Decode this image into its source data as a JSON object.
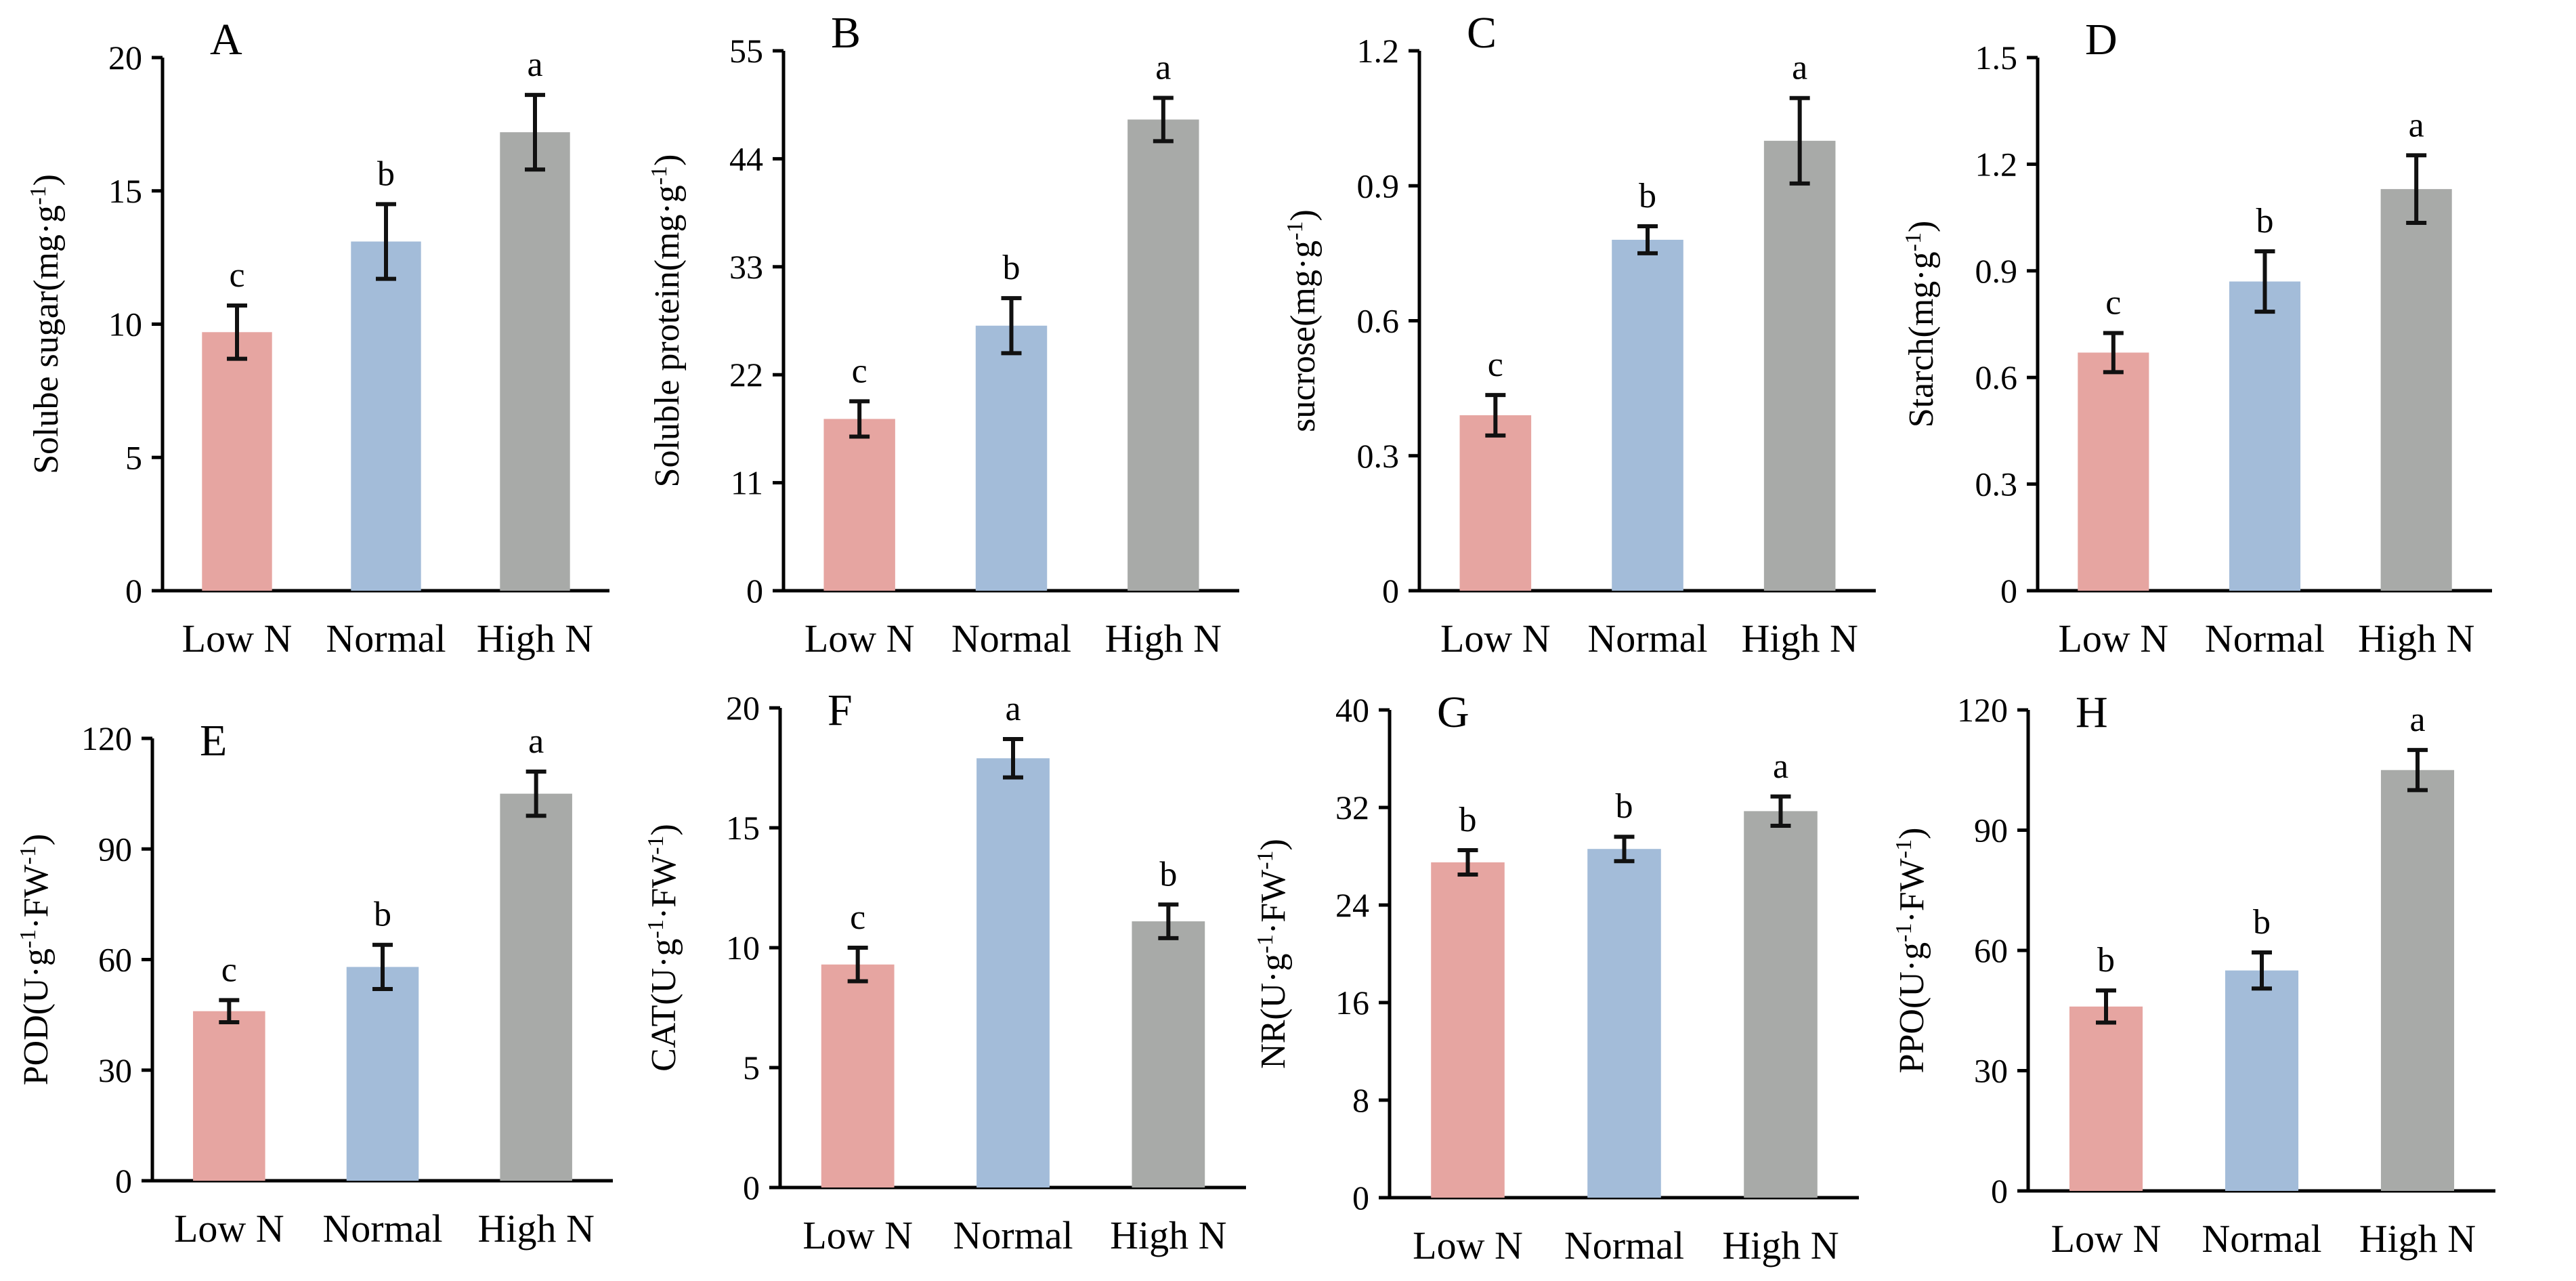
{
  "colors": {
    "low_n": "#e6a5a1",
    "normal": "#a3bcd9",
    "high_n": "#a8aaa8"
  },
  "chart_data": [
    {
      "panel": "A",
      "type": "bar",
      "categories": [
        "Low N",
        "Normal",
        "High N"
      ],
      "values": [
        9.7,
        13.1,
        17.2
      ],
      "errors": [
        1.0,
        1.4,
        1.4
      ],
      "sig": [
        "c",
        "b",
        "a"
      ],
      "ylabel": "Solube sugar(mg·g",
      "ylabel_sup": "-1",
      "ylabel_end": ")",
      "ylim": [
        0,
        20
      ],
      "ticks": [
        0,
        5,
        10,
        15,
        20
      ],
      "tick_labels": [
        "0",
        "5",
        "10",
        "15",
        "20"
      ]
    },
    {
      "panel": "B",
      "type": "bar",
      "categories": [
        "Low N",
        "Normal",
        "High N"
      ],
      "values": [
        17.5,
        27.0,
        48.0
      ],
      "errors": [
        1.8,
        2.8,
        2.2
      ],
      "sig": [
        "c",
        "b",
        "a"
      ],
      "ylabel": "Soluble protein(mg·g",
      "ylabel_sup": "-1",
      "ylabel_end": ")",
      "ylim": [
        0,
        55
      ],
      "ticks": [
        0,
        11,
        22,
        33,
        44,
        55
      ],
      "tick_labels": [
        "0",
        "11",
        "22",
        "33",
        "44",
        "55"
      ]
    },
    {
      "panel": "C",
      "type": "bar",
      "categories": [
        "Low N",
        "Normal",
        "High N"
      ],
      "values": [
        0.39,
        0.78,
        1.0
      ],
      "errors": [
        0.045,
        0.03,
        0.095
      ],
      "sig": [
        "c",
        "b",
        "a"
      ],
      "ylabel": "sucrose(mg·g",
      "ylabel_sup": "-1",
      "ylabel_end": ")",
      "ylim": [
        0,
        1.2
      ],
      "ticks": [
        0,
        0.3,
        0.6,
        0.9,
        1.2
      ],
      "tick_labels": [
        "0",
        "0.3",
        "0.6",
        "0.9",
        "1.2"
      ]
    },
    {
      "panel": "D",
      "type": "bar",
      "categories": [
        "Low N",
        "Normal",
        "High N"
      ],
      "values": [
        0.67,
        0.87,
        1.13
      ],
      "errors": [
        0.055,
        0.085,
        0.095
      ],
      "sig": [
        "c",
        "b",
        "a"
      ],
      "ylabel": "Starch(mg·g",
      "ylabel_sup": "-1",
      "ylabel_end": ")",
      "ylim": [
        0,
        1.5
      ],
      "ticks": [
        0,
        0.3,
        0.6,
        0.9,
        1.2,
        1.5
      ],
      "tick_labels": [
        "0",
        "0.3",
        "0.6",
        "0.9",
        "1.2",
        "1.5"
      ]
    },
    {
      "panel": "E",
      "type": "bar",
      "categories": [
        "Low N",
        "Normal",
        "High N"
      ],
      "values": [
        46,
        58,
        105
      ],
      "errors": [
        3,
        6,
        6
      ],
      "sig": [
        "c",
        "b",
        "a"
      ],
      "ylabel": "POD(U·g",
      "ylabel_sup": "-1",
      "ylabel_mid": "·FW",
      "ylabel_sup2": "-1",
      "ylabel_end": ")",
      "ylim": [
        0,
        120
      ],
      "ticks": [
        0,
        30,
        60,
        90,
        120
      ],
      "tick_labels": [
        "0",
        "30",
        "60",
        "90",
        "120"
      ]
    },
    {
      "panel": "F",
      "type": "bar",
      "categories": [
        "Low N",
        "Normal",
        "High N"
      ],
      "values": [
        9.3,
        17.9,
        11.1
      ],
      "errors": [
        0.7,
        0.8,
        0.7
      ],
      "sig": [
        "c",
        "a",
        "b"
      ],
      "ylabel": "CAT(U·g",
      "ylabel_sup": "-1",
      "ylabel_mid": "·FW",
      "ylabel_sup2": "-1",
      "ylabel_end": ")",
      "ylim": [
        0,
        20
      ],
      "ticks": [
        0,
        5,
        10,
        15,
        20
      ],
      "tick_labels": [
        "0",
        "5",
        "10",
        "15",
        "20"
      ]
    },
    {
      "panel": "G",
      "type": "bar",
      "categories": [
        "Low N",
        "Normal",
        "High N"
      ],
      "values": [
        27.5,
        28.6,
        31.7
      ],
      "errors": [
        1.0,
        1.0,
        1.2
      ],
      "sig": [
        "b",
        "b",
        "a"
      ],
      "ylabel": "NR(U·g",
      "ylabel_sup": "-1",
      "ylabel_mid": "·FW",
      "ylabel_sup2": "-1",
      "ylabel_end": ")",
      "ylim": [
        0,
        40
      ],
      "ticks": [
        0,
        8,
        16,
        24,
        32,
        40
      ],
      "tick_labels": [
        "0",
        "8",
        "16",
        "24",
        "32",
        "40"
      ]
    },
    {
      "panel": "H",
      "type": "bar",
      "categories": [
        "Low N",
        "Normal",
        "High N"
      ],
      "values": [
        46,
        55,
        105
      ],
      "errors": [
        4,
        4.5,
        5
      ],
      "sig": [
        "b",
        "b",
        "a"
      ],
      "ylabel": "PPO(U·g",
      "ylabel_sup": "-1",
      "ylabel_mid": "·FW",
      "ylabel_sup2": "-1",
      "ylabel_end": ")",
      "ylim": [
        0,
        120
      ],
      "ticks": [
        0,
        30,
        60,
        90,
        120
      ],
      "tick_labels": [
        "0",
        "30",
        "60",
        "90",
        "120"
      ]
    }
  ]
}
